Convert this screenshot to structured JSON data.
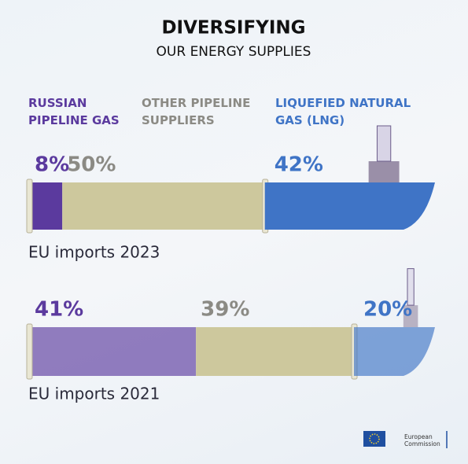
{
  "chart_data": {
    "type": "stacked-barh",
    "title": "DIVERSIFYING",
    "subtitle": "OUR ENERGY SUPPLIES",
    "categories": [
      "EU imports 2023",
      "EU imports 2021"
    ],
    "xlim": [
      0,
      100
    ],
    "series": [
      {
        "name": "RUSSIAN PIPELINE GAS",
        "color": "#5b3a9e",
        "values": [
          8,
          41
        ],
        "value_labels": [
          "8%",
          "41%"
        ]
      },
      {
        "name": "OTHER PIPELINE SUPPLIERS",
        "color": "#cdc89d",
        "values": [
          50,
          39
        ],
        "value_labels": [
          "50%",
          "39%"
        ]
      },
      {
        "name": "LIQUEFIED NATURAL GAS (LNG)",
        "color": "#3f74c6",
        "values": [
          42,
          20
        ],
        "value_labels": [
          "42%",
          "20%"
        ]
      }
    ]
  },
  "logo_text": "European Commission"
}
